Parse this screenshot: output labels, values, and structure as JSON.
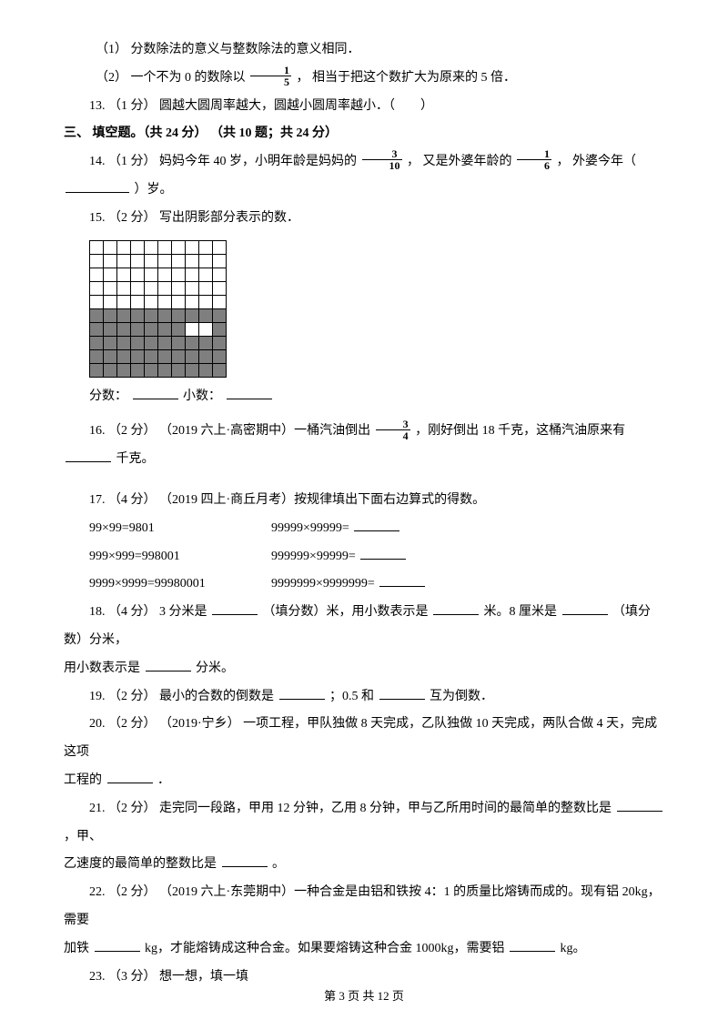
{
  "q_sub1": "（1） 分数除法的意义与整数除法的意义相同．",
  "q_sub2_a": "（2） 一个不为 0 的数除以",
  "q_sub2_frac_num": "1",
  "q_sub2_frac_den": "5",
  "q_sub2_b": "， 相当于把这个数扩大为原来的 5 倍．",
  "q13": "13. （1 分） 圆越大圆周率越大，圆越小圆周率越小．（　　）",
  "section3": "三、 填空题。（共 24 分） （共 10 题；共 24 分）",
  "q14_a": "14. （1 分） 妈妈今年 40 岁，小明年龄是妈妈的",
  "q14_frac1_num": "3",
  "q14_frac1_den": "10",
  "q14_b": "，  又是外婆年龄的",
  "q14_frac2_num": "1",
  "q14_frac2_den": "6",
  "q14_c": "，  外婆今年（",
  "q14_d": "）岁。",
  "q15": "15. （2 分） 写出阴影部分表示的数．",
  "q15_f": "分数：",
  "q15_g": "小数：",
  "q16_a": "16. （2 分） （2019 六上·高密期中）一桶汽油倒出",
  "q16_frac_num": "3",
  "q16_frac_den": "4",
  "q16_b": "，刚好倒出 18 千克，这桶汽油原来有",
  "q16_c": "千克。",
  "q17": "17. （4 分） （2019 四上·商丘月考）按规律填出下面右边算式的得数。",
  "q17_l1": "99×99=9801",
  "q17_r1": "99999×99999=",
  "q17_l2": "999×999=998001",
  "q17_r2": "999999×99999=",
  "q17_l3": "9999×9999=99980001",
  "q17_r3": "9999999×9999999=",
  "q18_a": "18. （4 分） 3 分米是",
  "q18_b": "（填分数）米，用小数表示是",
  "q18_c": "米。8 厘米是",
  "q18_d": "（填分数）分米，",
  "q18_e": "用小数表示是",
  "q18_f": "分米。",
  "q19_a": "19. （2 分） 最小的合数的倒数是",
  "q19_b": "；0.5 和",
  "q19_c": "互为倒数．",
  "q20_a": "20. （2 分） （2019·宁乡） 一项工程，甲队独做 8 天完成，乙队独做 10 天完成，两队合做 4 天，完成这项",
  "q20_b": "工程的",
  "q20_c": "．",
  "q21_a": "21. （2 分） 走完同一段路，甲用 12 分钟，乙用 8 分钟，甲与乙所用时间的最简单的整数比是",
  "q21_b": "，甲、",
  "q21_c": "乙速度的最简单的整数比是",
  "q21_d": "。",
  "q22_a": "22. （2 分） （2019 六上·东莞期中）一种合金是由铝和铁按 4：1 的质量比熔铸而成的。现有铝 20kg，需要",
  "q22_b": "加铁",
  "q22_c": "kg，才能熔铸成这种合金。如果要熔铸这种合金 1000kg，需要铝",
  "q22_d": "kg。",
  "q23": "23. （3 分） 想一想，填一填",
  "footer": "第 3 页 共 12 页",
  "grid": {
    "rows": 10,
    "cols": 10,
    "shaded_rows": [
      5,
      6,
      7,
      8,
      9
    ],
    "white_cells": [
      [
        6,
        7
      ],
      [
        6,
        8
      ]
    ]
  }
}
